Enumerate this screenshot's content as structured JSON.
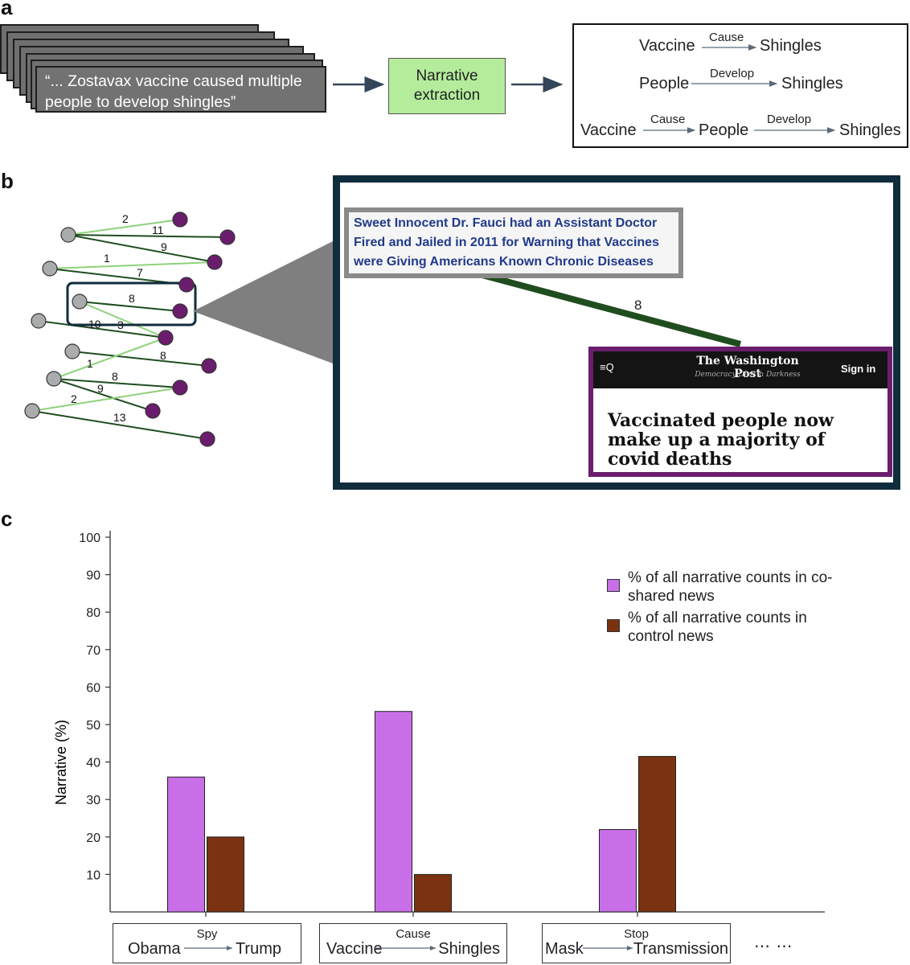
{
  "panel_labels": {
    "a": "a",
    "b": "b",
    "c": "c"
  },
  "panel_a": {
    "quote": "“... Zostavax vaccine caused multiple people to develop shingles”",
    "extraction_box": "Narrative extraction",
    "narratives": [
      {
        "nodes": [
          "Vaccine",
          "Shingles"
        ],
        "edges": [
          "Cause"
        ]
      },
      {
        "nodes": [
          "People",
          "Shingles"
        ],
        "edges": [
          "Develop"
        ]
      },
      {
        "nodes": [
          "Vaccine",
          "People",
          "Shingles"
        ],
        "edges": [
          "Cause",
          "Develop"
        ]
      }
    ]
  },
  "panel_b": {
    "edge_weights": [
      "2",
      "11",
      "9",
      "1",
      "7",
      "8",
      "10",
      "3",
      "8",
      "1",
      "8",
      "9",
      "2",
      "13"
    ],
    "zoom_edge_weight": "8",
    "headline": "Sweet Innocent Dr. Fauci had an Assistant Doctor Fired and Jailed in 2011 for Warning that Vaccines were Giving Americans Known Chronic Diseases",
    "news_card": {
      "menu": "≡Q",
      "masthead": "The Washington Post",
      "tagline": "Democracy Dies in Darkness",
      "sign_in": "Sign in",
      "headline": "Vaccinated people now make up a majority of covid deaths"
    },
    "colors": {
      "source_node": "#a9abad",
      "target_node": "#6b1d6d",
      "light_edge": "#8fd17a",
      "dark_edge": "#1f4d1f",
      "frame": "#102d3e"
    }
  },
  "chart_data": {
    "type": "bar",
    "ylabel": "Narrative (%)",
    "xlabel": "",
    "ylim": [
      0,
      100
    ],
    "yticks": [
      10,
      20,
      30,
      40,
      50,
      60,
      70,
      80,
      90,
      100
    ],
    "categories": [
      {
        "source": "Obama",
        "relation": "Spy",
        "target": "Trump"
      },
      {
        "source": "Vaccine",
        "relation": "Cause",
        "target": "Shingles"
      },
      {
        "source": "Mask",
        "relation": "Stop",
        "target": "Transmission"
      }
    ],
    "series": [
      {
        "name": "% of all narrative counts in co-shared news",
        "color": "#c86ee6",
        "values": [
          36,
          53.5,
          22
        ]
      },
      {
        "name": "% of all narrative counts in control news",
        "color": "#7b3210",
        "values": [
          20,
          10,
          41.5
        ]
      }
    ],
    "ellipsis": "⋯ ⋯",
    "legend_position": "top-right"
  }
}
